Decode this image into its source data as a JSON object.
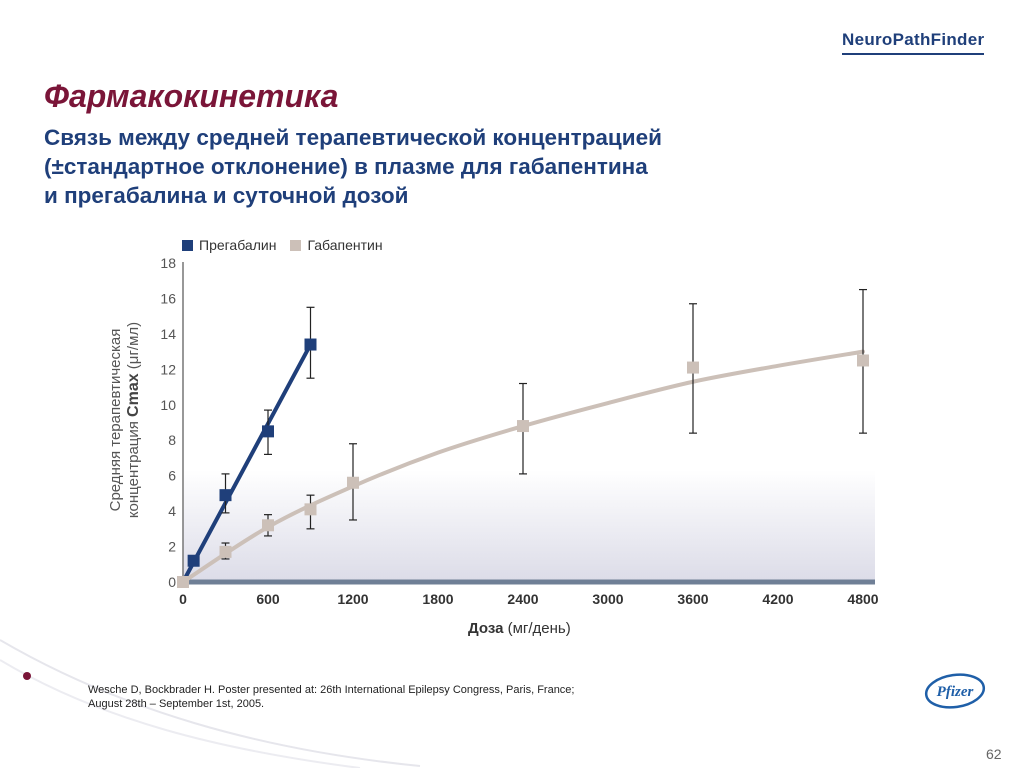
{
  "logo": {
    "text": "NeuroPathFinder"
  },
  "slide": {
    "title": "Фармакокинетика",
    "subtitle_lines": [
      "Связь между средней терапевтической концентрацией",
      "(±стандартное отклонение) в плазме для  габапентина",
      "и прегабалина и суточной дозой"
    ],
    "reference_lines": [
      "Wesche D, Bockbrader H.  Poster presented at: 26th International Epilepsy Congress, Paris, France;",
      "August 28th – September 1st, 2005."
    ],
    "page_number": "62",
    "brand_logo": "Pfizer"
  },
  "colors": {
    "pregabalin": "#1f3f7a",
    "gabapentin": "#ccc0b8",
    "title": "#7a1538",
    "subtitle": "#1f3f7a"
  },
  "chart_data": {
    "type": "line",
    "xlabel_bold": "Доза",
    "xlabel_unit": "(мг/день)",
    "ylabel_line1": "Средняя терапевтическая",
    "ylabel_line2_prefix": "концентрация ",
    "ylabel_cmax": "Cmax",
    "ylabel_unit": "(μг/мл)",
    "xlim": [
      0,
      4800
    ],
    "ylim": [
      0,
      18
    ],
    "x_ticks": [
      "0",
      "600",
      "1200",
      "1800",
      "2400",
      "3000",
      "3600",
      "4200",
      "4800"
    ],
    "y_ticks": [
      "0",
      "2",
      "4",
      "6",
      "8",
      "10",
      "12",
      "14",
      "16",
      "18"
    ],
    "legend": [
      "Прегабалин",
      "Габапентин"
    ],
    "legend_position": "top-left",
    "grid": false,
    "series": [
      {
        "name": "Прегабалин",
        "points": [
          {
            "x": 75,
            "y": 1.2,
            "err_low": 1.0,
            "err_high": 1.4
          },
          {
            "x": 300,
            "y": 4.9,
            "err_low": 3.9,
            "err_high": 6.1
          },
          {
            "x": 600,
            "y": 8.5,
            "err_low": 7.2,
            "err_high": 9.7
          },
          {
            "x": 900,
            "y": 13.4,
            "err_low": 11.5,
            "err_high": 15.5
          }
        ],
        "fit": [
          [
            0,
            0
          ],
          [
            900,
            13.4
          ]
        ]
      },
      {
        "name": "Габапентин",
        "points": [
          {
            "x": 0,
            "y": 0
          },
          {
            "x": 300,
            "y": 1.7,
            "err_low": 1.3,
            "err_high": 2.2
          },
          {
            "x": 600,
            "y": 3.2,
            "err_low": 2.6,
            "err_high": 3.8
          },
          {
            "x": 900,
            "y": 4.1,
            "err_low": 3.0,
            "err_high": 4.9
          },
          {
            "x": 1200,
            "y": 5.6,
            "err_low": 3.5,
            "err_high": 7.8
          },
          {
            "x": 2400,
            "y": 8.8,
            "err_low": 6.1,
            "err_high": 11.2
          },
          {
            "x": 3600,
            "y": 12.1,
            "err_low": 8.4,
            "err_high": 15.7
          },
          {
            "x": 4800,
            "y": 12.5,
            "err_low": 8.4,
            "err_high": 16.5
          }
        ],
        "fit": [
          [
            0,
            0
          ],
          [
            600,
            3.1
          ],
          [
            1200,
            5.4
          ],
          [
            1800,
            7.3
          ],
          [
            2400,
            8.8
          ],
          [
            3000,
            10.1
          ],
          [
            3600,
            11.3
          ],
          [
            4200,
            12.2
          ],
          [
            4800,
            13.0
          ]
        ]
      }
    ]
  }
}
